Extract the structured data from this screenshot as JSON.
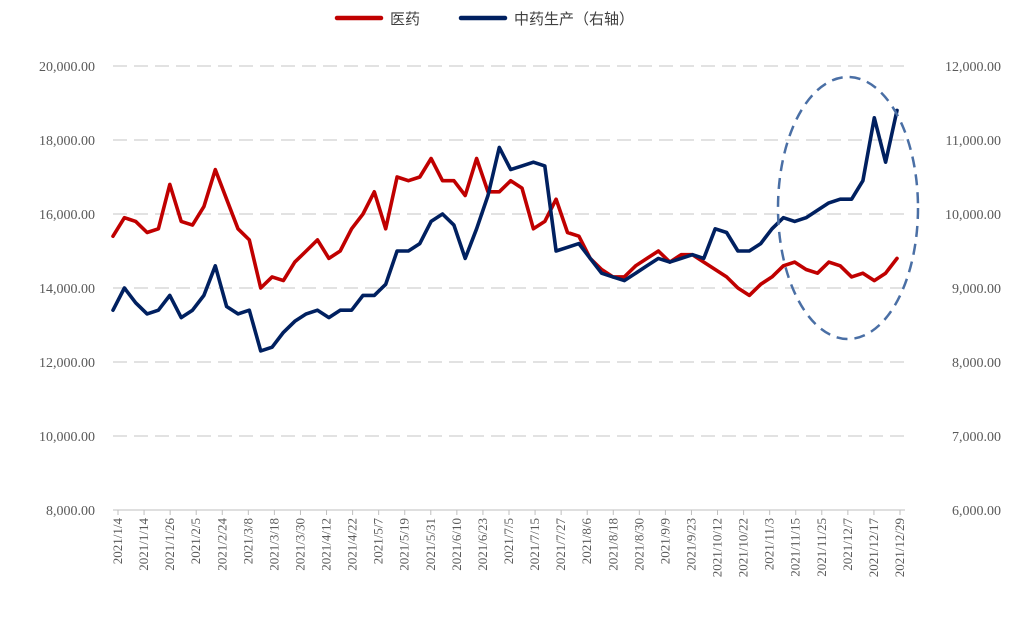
{
  "chart_data": {
    "type": "line",
    "title": "",
    "colors": {
      "left": "#c00000",
      "right": "#002060",
      "grid": "#d9d9d9",
      "annotation": "#4a6fa5"
    },
    "legend": {
      "position": "top-center",
      "items": [
        "医药",
        "中药生产（右轴）"
      ]
    },
    "x_ticks": [
      "2021/1/4",
      "2021/1/14",
      "2021/1/26",
      "2021/2/5",
      "2021/2/24",
      "2021/3/8",
      "2021/3/18",
      "2021/3/30",
      "2021/4/12",
      "2021/4/22",
      "2021/5/7",
      "2021/5/19",
      "2021/5/31",
      "2021/6/10",
      "2021/6/23",
      "2021/7/5",
      "2021/7/15",
      "2021/7/27",
      "2021/8/6",
      "2021/8/18",
      "2021/8/30",
      "2021/9/9",
      "2021/9/23",
      "2021/10/12",
      "2021/10/22",
      "2021/11/3",
      "2021/11/15",
      "2021/11/25",
      "2021/12/7",
      "2021/12/17",
      "2021/12/29"
    ],
    "y_left": {
      "min": 8000,
      "max": 20000,
      "step": 2000,
      "labels": [
        "8,000.00",
        "10,000.00",
        "12,000.00",
        "14,000.00",
        "16,000.00",
        "18,000.00",
        "20,000.00"
      ]
    },
    "y_right": {
      "min": 6000,
      "max": 12000,
      "step": 1000,
      "labels": [
        "6,000.00",
        "7,000.00",
        "8,000.00",
        "9,000.00",
        "10,000.00",
        "11,000.00",
        "12,000.00"
      ]
    },
    "series": [
      {
        "name": "医药",
        "axis": "left",
        "values": [
          15400,
          15900,
          15800,
          15500,
          15600,
          16800,
          15800,
          15700,
          16200,
          17200,
          16400,
          15600,
          15300,
          14000,
          14300,
          14200,
          14700,
          15000,
          15300,
          14800,
          15000,
          15600,
          16000,
          16600,
          15600,
          17000,
          16900,
          17000,
          17500,
          16900,
          16900,
          16500,
          17500,
          16600,
          16600,
          16900,
          16700,
          15600,
          15800,
          16400,
          15500,
          15400,
          14800,
          14500,
          14300,
          14300,
          14600,
          14800,
          15000,
          14700,
          14900,
          14900,
          14700,
          14500,
          14300,
          14000,
          13800,
          14100,
          14300,
          14600,
          14700,
          14500,
          14400,
          14700,
          14600,
          14300,
          14400,
          14200,
          14400,
          14800
        ]
      },
      {
        "name": "中药生产（右轴）",
        "axis": "right",
        "values": [
          8700,
          9000,
          8800,
          8650,
          8700,
          8900,
          8600,
          8700,
          8900,
          9300,
          8750,
          8650,
          8700,
          8150,
          8200,
          8400,
          8550,
          8650,
          8700,
          8600,
          8700,
          8700,
          8900,
          8900,
          9050,
          9500,
          9500,
          9600,
          9900,
          10000,
          9850,
          9400,
          9800,
          10250,
          10900,
          10600,
          10650,
          10700,
          10650,
          9500,
          9550,
          9600,
          9400,
          9200,
          9150,
          9100,
          9200,
          9300,
          9400,
          9350,
          9400,
          9450,
          9400,
          9800,
          9750,
          9500,
          9500,
          9600,
          9800,
          9950,
          9900,
          9950,
          10050,
          10150,
          10200,
          10200,
          10450,
          11300,
          10700,
          11400
        ]
      }
    ]
  },
  "annotation": {
    "shape": "dashed-ellipse",
    "label": ""
  }
}
